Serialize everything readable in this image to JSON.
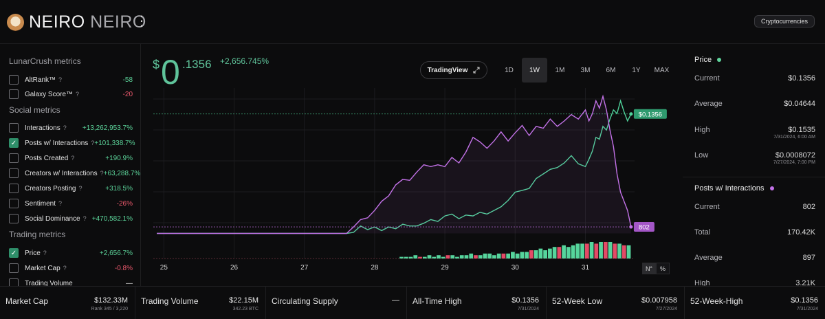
{
  "header": {
    "name": "NEIRO",
    "symbol": "NEIRO",
    "category": "Cryptocurrencies"
  },
  "sidebar": {
    "sections": [
      {
        "title": "LunarCrush metrics",
        "items": [
          {
            "label": "AltRank™",
            "value": "-58",
            "tone": "pos",
            "checked": false,
            "help": "?"
          },
          {
            "label": "Galaxy Score™",
            "value": "-20",
            "tone": "neg",
            "checked": false,
            "help": "?"
          }
        ]
      },
      {
        "title": "Social metrics",
        "items": [
          {
            "label": "Interactions",
            "value": "+13,262,953.7%",
            "tone": "pos",
            "checked": false,
            "help": "?"
          },
          {
            "label": "Posts w/ Interactions",
            "value": "+101,338.7%",
            "tone": "pos",
            "checked": true,
            "help": "?"
          },
          {
            "label": "Posts Created",
            "value": "+190.9%",
            "tone": "pos",
            "checked": false,
            "help": "?"
          },
          {
            "label": "Creators w/ Interactions",
            "value": "+63,288.7%",
            "tone": "pos",
            "checked": false,
            "help": "?"
          },
          {
            "label": "Creators Posting",
            "value": "+318.5%",
            "tone": "pos",
            "checked": false,
            "help": "?"
          },
          {
            "label": "Sentiment",
            "value": "-26%",
            "tone": "neg",
            "checked": false,
            "help": "?"
          },
          {
            "label": "Social Dominance",
            "value": "+470,582.1%",
            "tone": "pos",
            "checked": false,
            "help": "?"
          }
        ]
      },
      {
        "title": "Trading metrics",
        "items": [
          {
            "label": "Price",
            "value": "+2,656.7%",
            "tone": "pos",
            "checked": true,
            "help": "?"
          },
          {
            "label": "Market Cap",
            "value": "-0.8%",
            "tone": "neg",
            "checked": false,
            "help": "?"
          },
          {
            "label": "Trading Volume",
            "value": "—",
            "tone": "neu",
            "checked": false,
            "help": ""
          }
        ]
      }
    ]
  },
  "main": {
    "price_dollar": "$",
    "price_int": "0",
    "price_dec": ".1356",
    "price_change": "+2,656.745%",
    "tradingview_label": "TradingView",
    "ranges": [
      "1D",
      "1W",
      "1M",
      "3M",
      "6M",
      "1Y",
      "MAX"
    ],
    "active_range": "1W",
    "toggle": [
      "N°",
      "%"
    ]
  },
  "chart_data": {
    "type": "line",
    "x_ticks": [
      "25",
      "26",
      "27",
      "28",
      "29",
      "30",
      "31"
    ],
    "series": [
      {
        "name": "Price",
        "color": "#4fd29a",
        "last_label": "$0.1356",
        "x": [
          24.9,
          25.5,
          26.0,
          26.5,
          27.0,
          27.4,
          27.6,
          27.7,
          27.8,
          27.9,
          28.0,
          28.1,
          28.2,
          28.3,
          28.4,
          28.5,
          28.6,
          28.7,
          28.8,
          28.9,
          29.0,
          29.1,
          29.2,
          29.3,
          29.4,
          29.5,
          29.6,
          29.7,
          29.8,
          29.9,
          30.0,
          30.1,
          30.2,
          30.3,
          30.4,
          30.5,
          30.6,
          30.7,
          30.8,
          30.9,
          31.0,
          31.05,
          31.1,
          31.15,
          31.2,
          31.25,
          31.3,
          31.35,
          31.4,
          31.45,
          31.5,
          31.55,
          31.6,
          31.65
        ],
        "values": [
          0.0049,
          0.0049,
          0.0049,
          0.0049,
          0.0049,
          0.0049,
          0.0049,
          0.006,
          0.013,
          0.009,
          0.012,
          0.008,
          0.012,
          0.01,
          0.015,
          0.013,
          0.013,
          0.016,
          0.02,
          0.018,
          0.024,
          0.026,
          0.021,
          0.025,
          0.024,
          0.028,
          0.026,
          0.03,
          0.034,
          0.041,
          0.05,
          0.052,
          0.054,
          0.065,
          0.07,
          0.075,
          0.077,
          0.082,
          0.09,
          0.081,
          0.078,
          0.086,
          0.095,
          0.11,
          0.108,
          0.122,
          0.118,
          0.13,
          0.14,
          0.136,
          0.15,
          0.138,
          0.128,
          0.1356
        ]
      },
      {
        "name": "Posts w/ Interactions",
        "color": "#c372e8",
        "last_label": "802",
        "x": [
          24.9,
          25.5,
          26.0,
          26.5,
          27.0,
          27.4,
          27.6,
          27.7,
          27.8,
          27.9,
          28.0,
          28.1,
          28.2,
          28.3,
          28.4,
          28.5,
          28.6,
          28.7,
          28.8,
          28.9,
          29.0,
          29.1,
          29.2,
          29.3,
          29.4,
          29.5,
          29.6,
          29.7,
          29.8,
          29.9,
          30.0,
          30.1,
          30.2,
          30.3,
          30.4,
          30.5,
          30.6,
          30.7,
          30.8,
          30.9,
          31.0,
          31.05,
          31.1,
          31.15,
          31.2,
          31.25,
          31.3,
          31.35,
          31.4,
          31.45,
          31.5,
          31.55,
          31.6,
          31.65
        ],
        "values": [
          0.0049,
          0.0049,
          0.0049,
          0.0049,
          0.0049,
          0.0049,
          0.0049,
          0.012,
          0.02,
          0.022,
          0.03,
          0.04,
          0.046,
          0.058,
          0.064,
          0.063,
          0.072,
          0.08,
          0.078,
          0.08,
          0.078,
          0.088,
          0.082,
          0.094,
          0.11,
          0.105,
          0.098,
          0.106,
          0.116,
          0.106,
          0.115,
          0.123,
          0.112,
          0.122,
          0.12,
          0.13,
          0.122,
          0.128,
          0.135,
          0.13,
          0.14,
          0.128,
          0.136,
          0.15,
          0.142,
          0.155,
          0.14,
          0.118,
          0.1,
          0.07,
          0.05,
          0.04,
          0.03,
          0.012
        ]
      }
    ],
    "volume": [
      1,
      1,
      1,
      2,
      1,
      1,
      2,
      1,
      2,
      1,
      2,
      2,
      1,
      2,
      2,
      3,
      2,
      2,
      3,
      3,
      2,
      3,
      3,
      3,
      4,
      3,
      4,
      4,
      5,
      5,
      6,
      5,
      6,
      7,
      7,
      8,
      7,
      8,
      9,
      9,
      9,
      10,
      9,
      10,
      10,
      10,
      9,
      9,
      8,
      8
    ]
  },
  "right_panel": {
    "price": {
      "title": "Price",
      "dot": "#5fd49b",
      "rows": [
        {
          "label": "Current",
          "value": "$0.1356",
          "sub": ""
        },
        {
          "label": "Average",
          "value": "$0.04644",
          "sub": ""
        },
        {
          "label": "High",
          "value": "$0.1535",
          "sub": "7/31/2024, 6:00 AM"
        },
        {
          "label": "Low",
          "value": "$0.0008072",
          "sub": "7/27/2024, 7:00 PM"
        }
      ]
    },
    "posts": {
      "title": "Posts w/ Interactions",
      "dot": "#c372e8",
      "rows": [
        {
          "label": "Current",
          "value": "802",
          "sub": ""
        },
        {
          "label": "Total",
          "value": "170.42K",
          "sub": ""
        },
        {
          "label": "Average",
          "value": "897",
          "sub": ""
        },
        {
          "label": "High",
          "value": "3.21K",
          "sub": ""
        }
      ]
    }
  },
  "footer": [
    {
      "label": "Market Cap",
      "value": "$132.33M",
      "sub": "Rank 345 / 3,220"
    },
    {
      "label": "Trading Volume",
      "value": "$22.15M",
      "sub": "342.23 BTC"
    },
    {
      "label": "Circulating Supply",
      "value": "—",
      "sub": ""
    },
    {
      "label": "All-Time High",
      "value": "$0.1356",
      "sub": "7/31/2024"
    },
    {
      "label": "52-Week Low",
      "value": "$0.007958",
      "sub": "7/27/2024"
    },
    {
      "label": "52-Week-High",
      "value": "$0.1356",
      "sub": "7/31/2024"
    }
  ]
}
